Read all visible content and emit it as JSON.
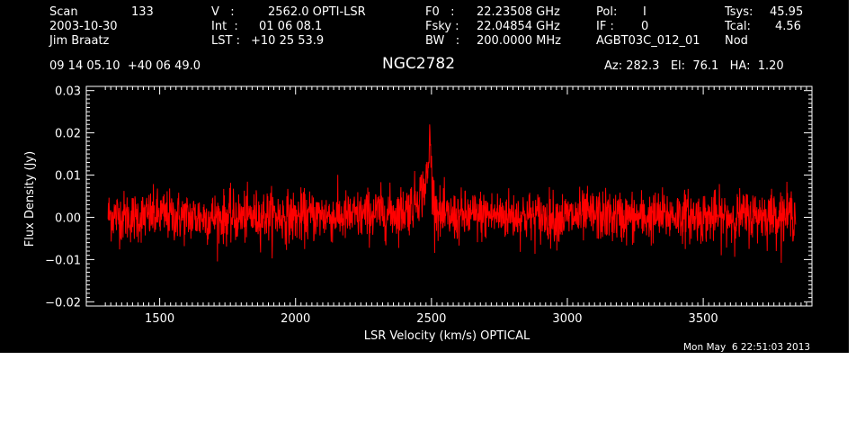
{
  "header": {
    "col1": {
      "scan_label": "Scan",
      "scan_value": "133",
      "date": "2003-10-30",
      "observer": "Jim Braatz",
      "coords": "09 14 05.10  +40 06 49.0"
    },
    "col2": {
      "v_label": "V   :",
      "v_value": "2562.0 OPTI-LSR",
      "int_label": "Int  :",
      "int_value": "01 06 08.1",
      "lst_label": "LST :",
      "lst_value": "+10 25 53.9"
    },
    "col3": {
      "f0_label": "F0   :",
      "f0_value": "22.23508 GHz",
      "fsky_label": "Fsky :",
      "fsky_value": "22.04854 GHz",
      "bw_label": "BW   :",
      "bw_value": "200.0000 MHz"
    },
    "col4": {
      "pol_label": "Pol:",
      "pol_value": "I",
      "if_label": "IF :",
      "if_value": "0",
      "project": "AGBT03C_012_01"
    },
    "col5": {
      "tsys_label": "Tsys:",
      "tsys_value": "45.95",
      "tcal_label": "Tcal:",
      "tcal_value": "4.56",
      "mode": "Nod"
    },
    "source": "NGC2782",
    "pointing": "Az: 282.3   El:  76.1   HA:  1.20",
    "timestamp": "Mon May  6 22:51:03 2013"
  },
  "colors": {
    "background": "#000000",
    "foreground": "#ffffff",
    "series": "#ff0000"
  },
  "chart_data": {
    "type": "line",
    "title": "NGC2782",
    "xlabel": "LSR Velocity (km/s) OPTICAL",
    "ylabel": "Flux Density (Jy)",
    "xlim": [
      1230,
      3900
    ],
    "ylim": [
      -0.021,
      0.031
    ],
    "xticks": [
      1500,
      2000,
      2500,
      3000,
      3500
    ],
    "xtick_labels": [
      "1500",
      "2000",
      "2500",
      "3000",
      "3500"
    ],
    "yticks": [
      -0.02,
      -0.01,
      0.0,
      0.01,
      0.02,
      0.03
    ],
    "ytick_labels": [
      "−0.02",
      "−0.01",
      "0.00",
      "0.01",
      "0.02",
      "0.03"
    ],
    "grid": false,
    "legend": "none",
    "series": [
      {
        "noise_rms_jy": 0.003,
        "x": [
          1310,
          1400,
          1500,
          1600,
          1700,
          1800,
          1900,
          2000,
          2100,
          2200,
          2300,
          2350,
          2400,
          2430,
          2450,
          2470,
          2480,
          2490,
          2495,
          2500,
          2505,
          2510,
          2520,
          2530,
          2550,
          2600,
          2700,
          2800,
          2900,
          3000,
          3100,
          3200,
          3300,
          3400,
          3500,
          3600,
          3700,
          3800,
          3840
        ],
        "y": [
          0.0005,
          0.0,
          0.0005,
          0.0,
          0.0,
          0.0,
          0.0005,
          0.0,
          0.0005,
          0.0,
          0.001,
          0.001,
          0.0015,
          0.003,
          0.005,
          0.0065,
          0.008,
          0.012,
          0.022,
          0.01,
          0.006,
          0.004,
          0.002,
          0.0005,
          0.0,
          0.0,
          0.0005,
          0.0005,
          0.0,
          0.0,
          0.0005,
          0.0,
          0.0,
          0.0005,
          0.0,
          0.0,
          0.0005,
          0.0005,
          0.001
        ]
      }
    ]
  }
}
